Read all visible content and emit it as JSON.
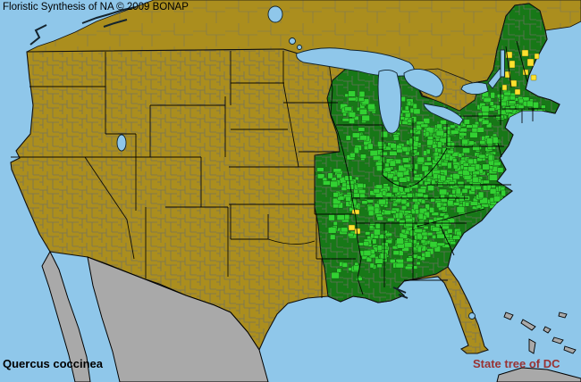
{
  "header": {
    "title": "Floristic Synthesis of NA © 2009 BONAP"
  },
  "species": {
    "name": "Quercus coccinea"
  },
  "note": {
    "text": "State tree of DC"
  },
  "map": {
    "colors": {
      "ocean": "#8fc7ea",
      "state_present": "#177817",
      "county_present": "#32d132",
      "county_rare": "#fce22e",
      "state_absent": "#ab8e1e",
      "outside_us": "#a9a9a9",
      "county_border": "#6f6f64",
      "state_border": "#000000",
      "title_text": "#000000",
      "note_text": "#993333"
    }
  }
}
